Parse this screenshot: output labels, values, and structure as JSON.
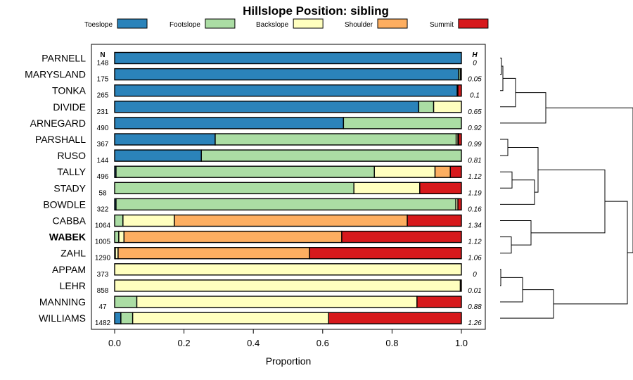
{
  "chart_data": {
    "type": "bar",
    "orientation": "horizontal",
    "stacked": true,
    "title": "Hillslope Position: sibling",
    "xlabel": "Proportion",
    "ylabel": "",
    "xlim": [
      0,
      1
    ],
    "x_ticks": [
      "0.0",
      "0.2",
      "0.4",
      "0.6",
      "0.8",
      "1.0"
    ],
    "grid": false,
    "legend_position": "top",
    "n_header": "N",
    "h_header": "H",
    "highlight_category": "WABEK",
    "series": [
      {
        "name": "Toeslope",
        "color": "#2b83ba"
      },
      {
        "name": "Footslope",
        "color": "#abdda4"
      },
      {
        "name": "Backslope",
        "color": "#ffffbf"
      },
      {
        "name": "Shoulder",
        "color": "#fdae61"
      },
      {
        "name": "Summit",
        "color": "#d7191c"
      }
    ],
    "categories": [
      "PARNELL",
      "MARYSLAND",
      "TONKA",
      "DIVIDE",
      "ARNEGARD",
      "PARSHALL",
      "RUSO",
      "TALLY",
      "STADY",
      "BOWDLE",
      "CABBA",
      "WABEK",
      "ZAHL",
      "APPAM",
      "LEHR",
      "MANNING",
      "WILLIAMS"
    ],
    "n": [
      "148",
      "175",
      "265",
      "231",
      "490",
      "367",
      "144",
      "496",
      "58",
      "322",
      "1064",
      "1005",
      "1290",
      "373",
      "858",
      "47",
      "1482"
    ],
    "h": [
      "0",
      "0.05",
      "0.1",
      "0.65",
      "0.92",
      "0.99",
      "0.81",
      "1.12",
      "1.19",
      "0.16",
      "1.34",
      "1.12",
      "1.06",
      "0",
      "0.01",
      "0.88",
      "1.26"
    ],
    "values": [
      [
        1.0,
        0.0,
        0.0,
        0.0,
        0.0
      ],
      [
        0.992,
        0.005,
        0.003,
        0.0,
        0.0
      ],
      [
        0.988,
        0.0,
        0.0,
        0.002,
        0.01
      ],
      [
        0.877,
        0.043,
        0.08,
        0.0,
        0.0
      ],
      [
        0.66,
        0.34,
        0.0,
        0.0,
        0.0
      ],
      [
        0.29,
        0.695,
        0.005,
        0.002,
        0.008
      ],
      [
        0.25,
        0.75,
        0.0,
        0.0,
        0.0
      ],
      [
        0.004,
        0.745,
        0.175,
        0.044,
        0.032
      ],
      [
        0.0,
        0.69,
        0.19,
        0.0,
        0.12
      ],
      [
        0.004,
        0.98,
        0.006,
        0.0,
        0.01
      ],
      [
        0.0,
        0.024,
        0.148,
        0.672,
        0.156
      ],
      [
        0.0,
        0.012,
        0.015,
        0.628,
        0.345
      ],
      [
        0.0,
        0.002,
        0.008,
        0.552,
        0.438
      ],
      [
        0.0,
        0.0,
        1.0,
        0.0,
        0.0
      ],
      [
        0.0,
        0.0,
        0.997,
        0.003,
        0.0
      ],
      [
        0.0,
        0.064,
        0.808,
        0.0,
        0.128
      ],
      [
        0.018,
        0.034,
        0.565,
        0.0,
        0.383
      ]
    ]
  }
}
